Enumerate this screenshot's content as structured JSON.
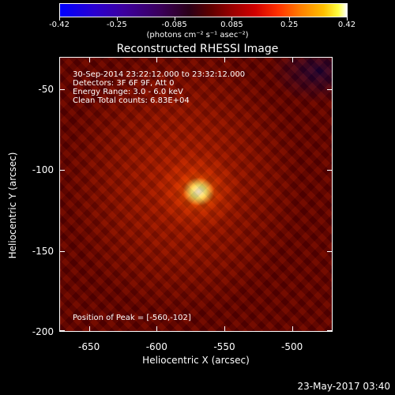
{
  "colorbar": {
    "ticks": [
      "-0.42",
      "-0.25",
      "-0.085",
      "0.085",
      "0.25",
      "0.42"
    ],
    "unit": "(photons cm⁻² s⁻¹ asec⁻²)"
  },
  "title": "Reconstructed RHESSI Image",
  "info": {
    "time_range": "30-Sep-2014 23:22:12.000 to 23:32:12.000",
    "detectors": "Detectors: 3F 6F 9F, Att 0",
    "energy": "Energy Range: 3.0 - 6.0 keV",
    "clean": "Clean    Total counts: 6.83E+04",
    "peak": "Position of Peak = [-560,-102]"
  },
  "axes": {
    "xlabel": "Heliocentric X (arcsec)",
    "ylabel": "Heliocentric Y (arcsec)",
    "xticks": [
      "-650",
      "-600",
      "-550",
      "-500"
    ],
    "yticks": [
      "-50",
      "-100",
      "-150",
      "-200"
    ],
    "xrange": [
      -672,
      -470
    ],
    "yrange": [
      -200,
      -30
    ]
  },
  "datestamp": "23-May-2017 03:40"
}
